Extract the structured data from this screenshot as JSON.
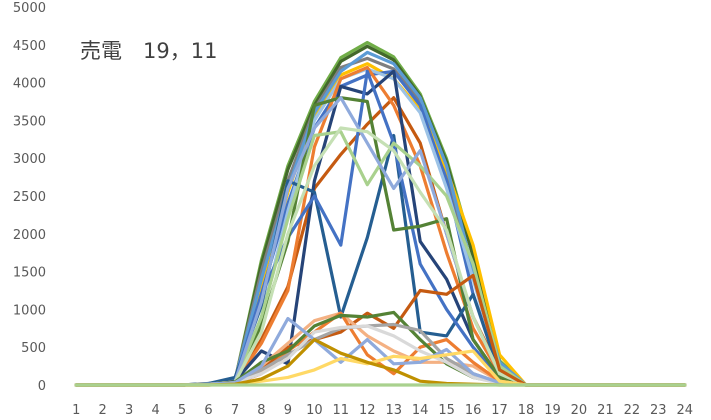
{
  "chart_data": {
    "type": "line",
    "title": "売電　19，11",
    "xlabel": "",
    "ylabel": "",
    "x": [
      1,
      2,
      3,
      4,
      5,
      6,
      7,
      8,
      9,
      10,
      11,
      12,
      13,
      14,
      15,
      16,
      17,
      18,
      19,
      20,
      21,
      22,
      23,
      24
    ],
    "ylim": [
      0,
      5000
    ],
    "yticks": [
      0,
      500,
      1000,
      1500,
      2000,
      2500,
      3000,
      3500,
      4000,
      4500,
      5000
    ],
    "grid": false,
    "legend": "none",
    "series": [
      {
        "color": "#70ad47",
        "values": [
          0,
          0,
          0,
          0,
          0,
          10,
          60,
          1650,
          2900,
          3750,
          4330,
          4530,
          4340,
          3850,
          2990,
          1750,
          320,
          0,
          0,
          0,
          0,
          0,
          0,
          0
        ]
      },
      {
        "color": "#43682b",
        "values": [
          0,
          0,
          0,
          0,
          0,
          10,
          50,
          1600,
          2850,
          3700,
          4280,
          4480,
          4300,
          3820,
          2950,
          1700,
          300,
          0,
          0,
          0,
          0,
          0,
          0,
          0
        ]
      },
      {
        "color": "#7f7f7f",
        "values": [
          0,
          0,
          0,
          0,
          0,
          20,
          70,
          1500,
          2700,
          3650,
          4200,
          4320,
          4180,
          3750,
          2800,
          1450,
          250,
          0,
          0,
          0,
          0,
          0,
          0,
          0
        ]
      },
      {
        "color": "#ffc000",
        "values": [
          0,
          0,
          0,
          0,
          0,
          10,
          50,
          1300,
          2550,
          3550,
          4100,
          4250,
          4050,
          3650,
          2850,
          1850,
          400,
          0,
          0,
          0,
          0,
          0,
          0,
          0
        ]
      },
      {
        "color": "#5b9bd5",
        "values": [
          0,
          0,
          0,
          0,
          0,
          10,
          60,
          1400,
          2600,
          3600,
          4150,
          4400,
          4250,
          3800,
          2900,
          1500,
          300,
          0,
          0,
          0,
          0,
          0,
          0,
          0
        ]
      },
      {
        "color": "#4472c4",
        "values": [
          0,
          0,
          0,
          0,
          0,
          10,
          40,
          1200,
          2400,
          3400,
          3950,
          4100,
          4150,
          3700,
          2700,
          1200,
          200,
          0,
          0,
          0,
          0,
          0,
          0,
          0
        ]
      },
      {
        "color": "#9dc3e6",
        "values": [
          0,
          0,
          0,
          0,
          0,
          10,
          30,
          900,
          2300,
          3500,
          4050,
          4180,
          4050,
          3600,
          2600,
          1400,
          200,
          0,
          0,
          0,
          0,
          0,
          0,
          0
        ]
      },
      {
        "color": "#c55a11",
        "values": [
          0,
          0,
          0,
          0,
          0,
          10,
          40,
          600,
          1300,
          2600,
          3050,
          3450,
          3800,
          3200,
          2000,
          900,
          200,
          0,
          0,
          0,
          0,
          0,
          0,
          0
        ]
      },
      {
        "color": "#ed7d31",
        "values": [
          0,
          0,
          0,
          0,
          0,
          10,
          40,
          550,
          1250,
          3150,
          4050,
          4200,
          3700,
          2900,
          1750,
          750,
          150,
          0,
          0,
          0,
          0,
          0,
          0,
          0
        ]
      },
      {
        "color": "#264478",
        "values": [
          0,
          0,
          0,
          0,
          0,
          10,
          50,
          450,
          280,
          2700,
          3950,
          3850,
          4150,
          1900,
          1400,
          600,
          100,
          0,
          0,
          0,
          0,
          0,
          0,
          0
        ]
      },
      {
        "color": "#255e91",
        "values": [
          0,
          0,
          0,
          0,
          0,
          20,
          100,
          1050,
          2700,
          2550,
          900,
          1950,
          3300,
          700,
          650,
          1200,
          150,
          0,
          0,
          0,
          0,
          0,
          0,
          0
        ]
      },
      {
        "color": "#4472c4",
        "values": [
          0,
          0,
          0,
          0,
          0,
          10,
          40,
          1200,
          1950,
          2500,
          1850,
          4150,
          3200,
          1600,
          1000,
          500,
          100,
          0,
          0,
          0,
          0,
          0,
          0,
          0
        ]
      },
      {
        "color": "#548235",
        "values": [
          0,
          0,
          0,
          0,
          0,
          10,
          40,
          800,
          1900,
          3700,
          3800,
          3750,
          2050,
          2100,
          2200,
          600,
          100,
          0,
          0,
          0,
          0,
          0,
          0,
          0
        ]
      },
      {
        "color": "#a9d18e",
        "values": [
          0,
          0,
          0,
          0,
          0,
          10,
          40,
          900,
          2200,
          3300,
          3350,
          2650,
          3200,
          2900,
          2500,
          1600,
          250,
          0,
          0,
          0,
          0,
          0,
          0,
          0
        ]
      },
      {
        "color": "#8faadc",
        "values": [
          0,
          0,
          0,
          0,
          0,
          10,
          40,
          1100,
          2600,
          3400,
          3800,
          3200,
          2600,
          3100,
          2000,
          900,
          150,
          0,
          0,
          0,
          0,
          0,
          0,
          0
        ]
      },
      {
        "color": "#c5e0b4",
        "values": [
          0,
          0,
          0,
          0,
          0,
          10,
          40,
          700,
          2000,
          2900,
          3400,
          3350,
          3100,
          2550,
          2050,
          900,
          150,
          0,
          0,
          0,
          0,
          0,
          0,
          0
        ]
      },
      {
        "color": "#c55a11",
        "values": [
          0,
          0,
          0,
          0,
          0,
          10,
          40,
          200,
          500,
          600,
          700,
          950,
          750,
          1250,
          1200,
          1450,
          200,
          0,
          0,
          0,
          0,
          0,
          0,
          0
        ]
      },
      {
        "color": "#f4b183",
        "values": [
          0,
          0,
          0,
          0,
          0,
          10,
          30,
          250,
          550,
          850,
          950,
          650,
          450,
          300,
          300,
          250,
          50,
          0,
          0,
          0,
          0,
          0,
          0,
          0
        ]
      },
      {
        "color": "#ed7d31",
        "values": [
          0,
          0,
          0,
          0,
          0,
          0,
          20,
          150,
          450,
          700,
          950,
          400,
          150,
          500,
          600,
          300,
          50,
          0,
          0,
          0,
          0,
          0,
          0,
          0
        ]
      },
      {
        "color": "#548235",
        "values": [
          0,
          0,
          0,
          0,
          0,
          10,
          40,
          300,
          450,
          780,
          920,
          900,
          960,
          600,
          280,
          100,
          30,
          0,
          0,
          0,
          0,
          0,
          0,
          0
        ]
      },
      {
        "color": "#a5a5a5",
        "values": [
          0,
          0,
          0,
          0,
          0,
          10,
          30,
          200,
          400,
          600,
          750,
          780,
          800,
          720,
          350,
          150,
          30,
          0,
          0,
          0,
          0,
          0,
          0,
          0
        ]
      },
      {
        "color": "#d9d9d9",
        "values": [
          0,
          0,
          0,
          0,
          0,
          10,
          30,
          150,
          350,
          700,
          760,
          780,
          650,
          450,
          300,
          100,
          20,
          0,
          0,
          0,
          0,
          0,
          0,
          0
        ]
      },
      {
        "color": "#8faadc",
        "values": [
          0,
          0,
          0,
          0,
          0,
          10,
          30,
          250,
          880,
          600,
          300,
          600,
          280,
          300,
          470,
          150,
          30,
          0,
          0,
          0,
          0,
          0,
          0,
          0
        ]
      },
      {
        "color": "#ffd966",
        "values": [
          0,
          0,
          0,
          0,
          0,
          0,
          10,
          50,
          100,
          200,
          350,
          280,
          380,
          350,
          400,
          450,
          50,
          0,
          0,
          0,
          0,
          0,
          0,
          0
        ]
      },
      {
        "color": "#bf9000",
        "values": [
          0,
          0,
          0,
          0,
          0,
          0,
          10,
          80,
          250,
          600,
          420,
          300,
          200,
          50,
          20,
          10,
          0,
          0,
          0,
          0,
          0,
          0,
          0,
          0
        ]
      },
      {
        "color": "#a9d18e",
        "values": [
          0,
          0,
          0,
          0,
          0,
          0,
          0,
          0,
          0,
          0,
          0,
          0,
          0,
          0,
          0,
          0,
          0,
          0,
          0,
          0,
          0,
          0,
          0,
          0
        ]
      }
    ]
  }
}
